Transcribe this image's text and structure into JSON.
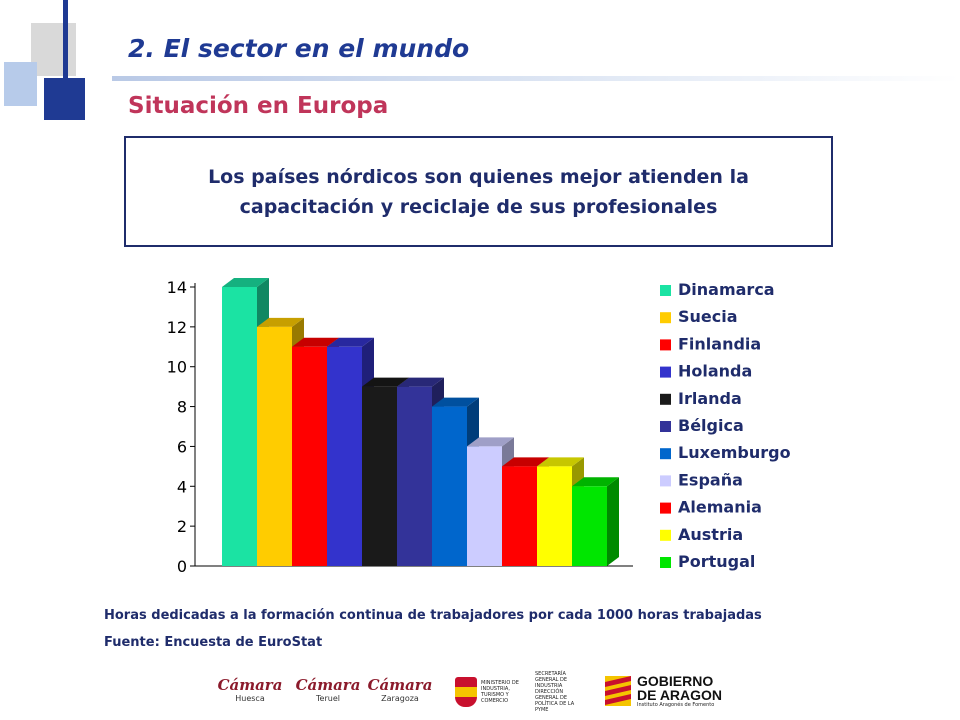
{
  "header": {
    "title": "2. El sector en el mundo",
    "subtitle": "Situación en Europa"
  },
  "callout": {
    "text": "Los países nórdicos son quienes mejor atienden la capacitación y reciclaje de sus profesionales"
  },
  "chart_data": {
    "type": "bar",
    "title": "",
    "xlabel": "",
    "ylabel": "",
    "ylim": [
      0,
      14
    ],
    "yticks": [
      0,
      2,
      4,
      6,
      8,
      10,
      12,
      14
    ],
    "grid": false,
    "legend_position": "right",
    "categories": [
      "Dinamarca",
      "Suecia",
      "Finlandia",
      "Holanda",
      "Irlanda",
      "Bélgica",
      "Luxemburgo",
      "España",
      "Alemania",
      "Austria",
      "Portugal"
    ],
    "values": [
      14,
      12,
      11,
      11,
      9,
      9,
      8,
      6,
      5,
      5,
      4
    ],
    "colors": [
      "#1be3a3",
      "#ffcc00",
      "#ff0000",
      "#3333cc",
      "#1a1a1a",
      "#333399",
      "#0066cc",
      "#ccccff",
      "#ff0000",
      "#ffff00",
      "#00e600"
    ]
  },
  "footnotes": {
    "line1": "Horas dedicadas a la formación continua de trabajadores por cada 1000 horas trabajadas",
    "line2": "Fuente: Encuesta de EuroStat"
  },
  "logos": {
    "camara_word": "Cámara",
    "camara1_city": "Huesca",
    "camara2_city": "Teruel",
    "camara3_city": "Zaragoza",
    "ministerio_left": "MINISTERIO DE INDUSTRIA, TURISMO Y COMERCIO",
    "ministerio_right": "SECRETARÍA GENERAL DE INDUSTRIA DIRECCIÓN GENERAL DE POLÍTICA DE LA PYME",
    "gobierno_line1": "GOBIERNO",
    "gobierno_line2": "DE ARAGON",
    "gobierno_sub": "Instituto Aragonés de Fomento"
  }
}
